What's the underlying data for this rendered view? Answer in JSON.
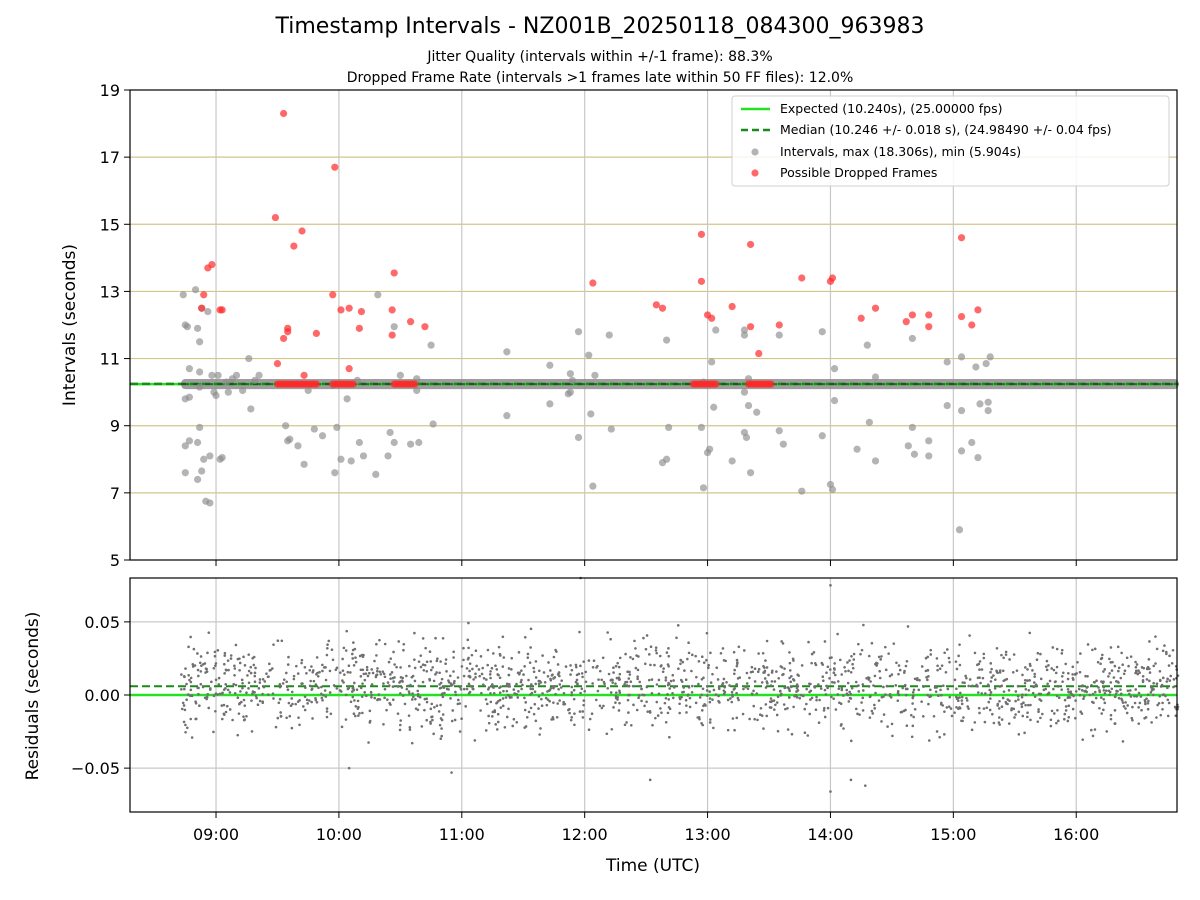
{
  "figure": {
    "title": "Timestamp Intervals - NZ001B_20250118_084300_963983",
    "subtitle_jitter": "Jitter Quality (intervals within +/-1 frame): 88.3%",
    "subtitle_dropped": "Dropped Frame Rate (intervals >1 frames late within 50 FF files): 12.0%"
  },
  "colors": {
    "expected": "#22e022",
    "median": "#1a8a1a",
    "intervals": "#8c8c8c",
    "dropped": "#ff2a2a",
    "hgrid": "#d4c48a",
    "vgrid": "#c8c8c8",
    "residual_points": "#707070"
  },
  "chart_data": [
    {
      "type": "scatter",
      "panel": "intervals",
      "ylabel": "Intervals (seconds)",
      "ylim": [
        5,
        19
      ],
      "yticks": [
        "5",
        "7",
        "9",
        "11",
        "13",
        "15",
        "17",
        "19"
      ],
      "xlim_hours": [
        8.3,
        16.82
      ],
      "xticks": [
        "09:00",
        "10:00",
        "11:00",
        "12:00",
        "13:00",
        "14:00",
        "15:00",
        "16:00"
      ],
      "grid": "horizontal gold at y ticks, vertical gray at x ticks",
      "legend_position": "upper right",
      "legend": [
        "Expected (10.240s), (25.00000 fps)",
        "Median (10.246 +/- 0.018 s), (24.98490 +/- 0.04 fps)",
        "Intervals, max (18.306s), min (5.904s)",
        "Possible Dropped Frames"
      ],
      "expected_value": 10.24,
      "median_value": 10.246,
      "interval_band": {
        "x_start": "08:43",
        "x_end": "16:50",
        "center": 10.24,
        "half_width": 0.15
      },
      "intervals_outliers": [
        [
          "08:44",
          12.9
        ],
        [
          "08:45",
          12.0
        ],
        [
          "08:46",
          11.95
        ],
        [
          "08:47",
          10.7
        ],
        [
          "08:45",
          9.8
        ],
        [
          "08:47",
          9.85
        ],
        [
          "08:45",
          8.4
        ],
        [
          "08:47",
          8.55
        ],
        [
          "08:45",
          7.6
        ],
        [
          "08:50",
          13.05
        ],
        [
          "08:51",
          11.9
        ],
        [
          "08:52",
          11.5
        ],
        [
          "08:53",
          12.5
        ],
        [
          "08:52",
          10.6
        ],
        [
          "08:52",
          10.15
        ],
        [
          "08:51",
          8.5
        ],
        [
          "08:52",
          8.95
        ],
        [
          "08:53",
          7.65
        ],
        [
          "08:51",
          7.4
        ],
        [
          "08:54",
          8.0
        ],
        [
          "08:55",
          6.75
        ],
        [
          "08:57",
          6.7
        ],
        [
          "08:57",
          8.1
        ],
        [
          "08:56",
          12.4
        ],
        [
          "08:58",
          10.5
        ],
        [
          "08:59",
          10.0
        ],
        [
          "09:00",
          9.9
        ],
        [
          "09:01",
          10.5
        ],
        [
          "09:02",
          8.0
        ],
        [
          "09:03",
          8.05
        ],
        [
          "09:05",
          10.3
        ],
        [
          "09:06",
          10.0
        ],
        [
          "09:08",
          10.4
        ],
        [
          "09:10",
          10.5
        ],
        [
          "09:13",
          10.05
        ],
        [
          "09:16",
          11.0
        ],
        [
          "09:17",
          9.5
        ],
        [
          "09:19",
          10.35
        ],
        [
          "09:21",
          10.5
        ],
        [
          "09:34",
          9.0
        ],
        [
          "09:35",
          8.55
        ],
        [
          "09:36",
          8.6
        ],
        [
          "09:40",
          8.4
        ],
        [
          "09:43",
          7.85
        ],
        [
          "09:45",
          10.05
        ],
        [
          "09:48",
          8.9
        ],
        [
          "09:52",
          8.7
        ],
        [
          "09:57",
          10.2
        ],
        [
          "09:58",
          7.6
        ],
        [
          "09:59",
          8.95
        ],
        [
          "10:01",
          8.0
        ],
        [
          "10:04",
          9.8
        ],
        [
          "10:06",
          7.95
        ],
        [
          "10:10",
          8.5
        ],
        [
          "10:12",
          8.1
        ],
        [
          "10:18",
          7.55
        ],
        [
          "10:19",
          12.9
        ],
        [
          "10:24",
          8.1
        ],
        [
          "10:25",
          8.8
        ],
        [
          "10:27",
          11.95
        ],
        [
          "10:27",
          8.5
        ],
        [
          "10:30",
          10.5
        ],
        [
          "10:35",
          8.45
        ],
        [
          "10:39",
          8.5
        ],
        [
          "10:38",
          10.4
        ],
        [
          "10:45",
          11.4
        ],
        [
          "10:46",
          9.05
        ],
        [
          "10:38",
          10.05
        ],
        [
          "10:09",
          10.35
        ],
        [
          "11:22",
          11.2
        ],
        [
          "11:22",
          9.3
        ],
        [
          "11:43",
          10.8
        ],
        [
          "11:43",
          9.65
        ],
        [
          "11:53",
          10.55
        ],
        [
          "11:54",
          10.35
        ],
        [
          "11:53",
          10.0
        ],
        [
          "11:52",
          9.95
        ],
        [
          "11:57",
          11.8
        ],
        [
          "11:57",
          8.65
        ],
        [
          "12:02",
          11.1
        ],
        [
          "12:03",
          9.35
        ],
        [
          "12:04",
          7.2
        ],
        [
          "12:05",
          10.5
        ],
        [
          "12:12",
          11.7
        ],
        [
          "12:13",
          8.9
        ],
        [
          "12:38",
          7.9
        ],
        [
          "12:40",
          8.0
        ],
        [
          "12:41",
          8.95
        ],
        [
          "12:40",
          11.55
        ],
        [
          "12:57",
          8.95
        ],
        [
          "12:58",
          7.15
        ],
        [
          "12:58",
          10.3
        ],
        [
          "13:00",
          8.2
        ],
        [
          "13:01",
          8.3
        ],
        [
          "13:02",
          10.9
        ],
        [
          "13:03",
          9.55
        ],
        [
          "13:04",
          11.85
        ],
        [
          "13:12",
          7.95
        ],
        [
          "13:18",
          10.0
        ],
        [
          "13:18",
          11.7
        ],
        [
          "13:18",
          11.85
        ],
        [
          "13:18",
          8.8
        ],
        [
          "13:19",
          8.65
        ],
        [
          "13:20",
          9.6
        ],
        [
          "13:20",
          10.4
        ],
        [
          "13:21",
          7.6
        ],
        [
          "13:24",
          9.4
        ],
        [
          "13:35",
          8.85
        ],
        [
          "13:37",
          8.45
        ],
        [
          "13:35",
          11.7
        ],
        [
          "13:46",
          7.05
        ],
        [
          "13:56",
          11.8
        ],
        [
          "13:56",
          8.7
        ],
        [
          "14:00",
          7.25
        ],
        [
          "14:01",
          7.1
        ],
        [
          "14:02",
          9.75
        ],
        [
          "14:02",
          10.7
        ],
        [
          "14:13",
          8.3
        ],
        [
          "14:18",
          11.4
        ],
        [
          "14:19",
          9.1
        ],
        [
          "14:22",
          7.95
        ],
        [
          "14:22",
          10.45
        ],
        [
          "14:38",
          8.4
        ],
        [
          "14:40",
          8.95
        ],
        [
          "14:41",
          8.15
        ],
        [
          "14:40",
          11.6
        ],
        [
          "14:48",
          8.55
        ],
        [
          "14:48",
          8.1
        ],
        [
          "14:57",
          10.9
        ],
        [
          "14:57",
          9.6
        ],
        [
          "15:03",
          5.9
        ],
        [
          "15:04",
          8.25
        ],
        [
          "15:04",
          11.05
        ],
        [
          "15:04",
          9.45
        ],
        [
          "15:09",
          8.5
        ],
        [
          "15:11",
          10.75
        ],
        [
          "15:12",
          8.05
        ],
        [
          "15:13",
          9.65
        ],
        [
          "15:16",
          10.85
        ],
        [
          "15:17",
          9.7
        ],
        [
          "15:17",
          9.45
        ],
        [
          "15:18",
          11.05
        ]
      ],
      "dropped_frames": [
        [
          "08:56",
          13.7
        ],
        [
          "08:58",
          13.8
        ],
        [
          "08:54",
          12.9
        ],
        [
          "08:53",
          12.5
        ],
        [
          "09:02",
          12.45
        ],
        [
          "09:03",
          12.45
        ],
        [
          "09:29",
          15.2
        ],
        [
          "09:33",
          18.3
        ],
        [
          "09:35",
          11.9
        ],
        [
          "09:35",
          11.8
        ],
        [
          "09:33",
          11.6
        ],
        [
          "09:30",
          10.85
        ],
        [
          "09:38",
          14.35
        ],
        [
          "09:42",
          14.8
        ],
        [
          "09:43",
          10.5
        ],
        [
          "09:49",
          11.75
        ],
        [
          "09:57",
          12.9
        ],
        [
          "09:58",
          16.7
        ],
        [
          "10:01",
          12.45
        ],
        [
          "10:05",
          12.5
        ],
        [
          "10:05",
          10.7
        ],
        [
          "10:11",
          12.4
        ],
        [
          "10:10",
          11.9
        ],
        [
          "10:27",
          13.55
        ],
        [
          "10:26",
          12.45
        ],
        [
          "10:26",
          11.7
        ],
        [
          "10:35",
          12.1
        ],
        [
          "10:42",
          11.95
        ],
        [
          "12:04",
          13.25
        ],
        [
          "12:35",
          12.6
        ],
        [
          "12:38",
          12.5
        ],
        [
          "12:57",
          14.7
        ],
        [
          "12:57",
          13.3
        ],
        [
          "13:00",
          12.3
        ],
        [
          "13:02",
          12.2
        ],
        [
          "13:12",
          12.55
        ],
        [
          "13:21",
          14.4
        ],
        [
          "13:21",
          11.95
        ],
        [
          "13:25",
          11.15
        ],
        [
          "13:35",
          12.0
        ],
        [
          "13:46",
          13.4
        ],
        [
          "14:00",
          13.3
        ],
        [
          "14:01",
          13.4
        ],
        [
          "14:15",
          12.2
        ],
        [
          "14:22",
          12.5
        ],
        [
          "14:37",
          12.1
        ],
        [
          "14:40",
          12.3
        ],
        [
          "14:48",
          12.3
        ],
        [
          "14:48",
          11.95
        ],
        [
          "15:04",
          14.6
        ],
        [
          "15:04",
          12.25
        ],
        [
          "15:09",
          12.0
        ],
        [
          "15:12",
          12.45
        ]
      ],
      "dropped_clusters": [
        {
          "x_start": "09:30",
          "x_end": "09:49",
          "y": 10.24
        },
        {
          "x_start": "09:57",
          "x_end": "10:07",
          "y": 10.24
        },
        {
          "x_start": "10:27",
          "x_end": "10:37",
          "y": 10.24
        },
        {
          "x_start": "12:53",
          "x_end": "13:04",
          "y": 10.24
        },
        {
          "x_start": "13:20",
          "x_end": "13:31",
          "y": 10.24
        }
      ]
    },
    {
      "type": "scatter",
      "panel": "residuals",
      "xlabel": "Time (UTC)",
      "ylabel": "Residuals (seconds)",
      "ylim": [
        -0.08,
        0.08
      ],
      "yticks": [
        "−0.05",
        "0.00",
        "0.05"
      ],
      "ytick_values": [
        -0.05,
        0.0,
        0.05
      ],
      "xlim_hours": [
        8.3,
        16.82
      ],
      "xticks": [
        "09:00",
        "10:00",
        "11:00",
        "12:00",
        "13:00",
        "14:00",
        "15:00",
        "16:00"
      ],
      "expected_value": 0.0,
      "median_value": 0.006,
      "grid": "on",
      "points_description": {
        "x_start": "08:43",
        "x_end": "16:50",
        "count": 1900,
        "center": 0.006,
        "spread_sd": 0.02,
        "notable": [
          [
            "11:58",
            0.08
          ],
          [
            "14:00",
            0.075
          ],
          [
            "14:00",
            -0.066
          ],
          [
            "14:17",
            -0.062
          ],
          [
            "12:32",
            -0.058
          ],
          [
            "14:10",
            -0.058
          ],
          [
            "10:55",
            -0.053
          ],
          [
            "10:05",
            -0.05
          ]
        ]
      }
    }
  ]
}
